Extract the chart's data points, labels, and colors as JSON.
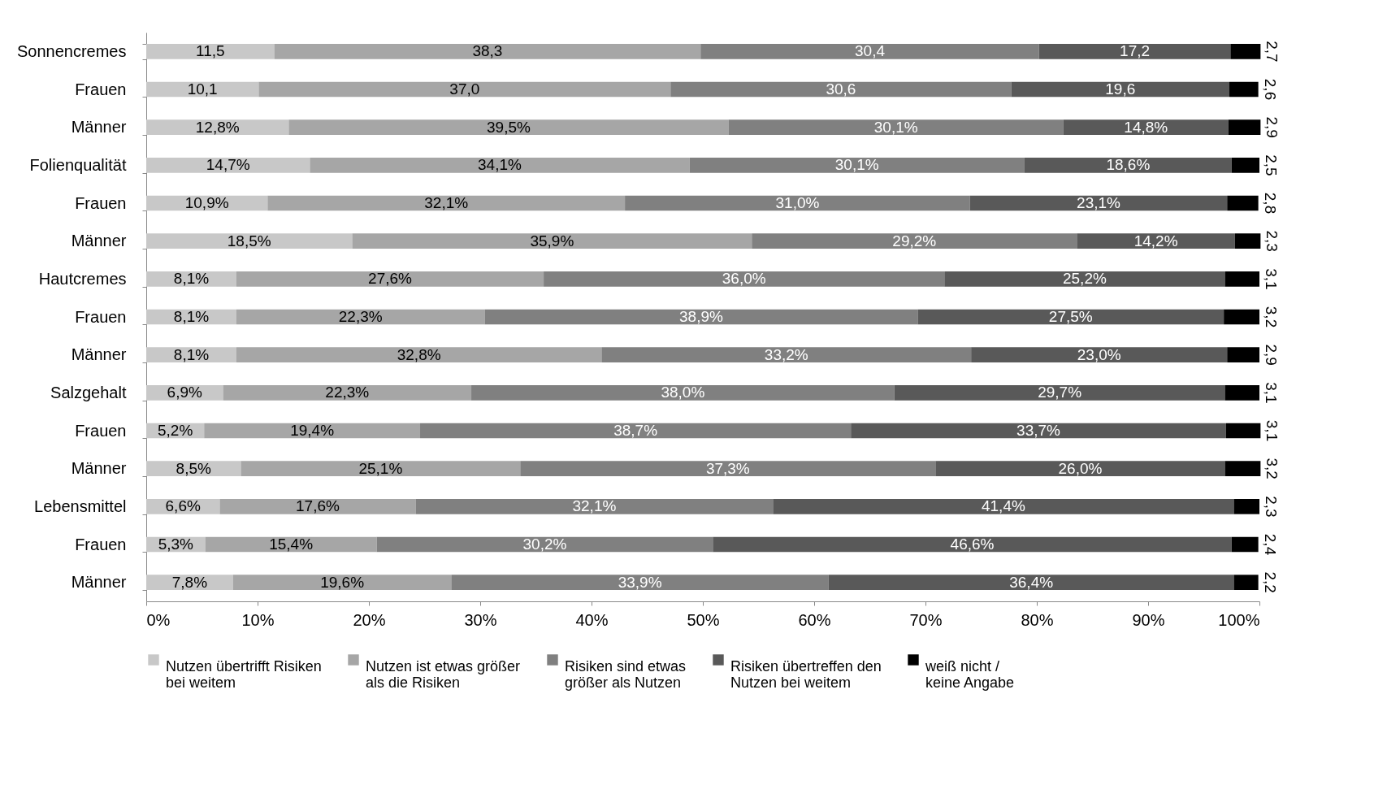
{
  "chart_data": {
    "type": "bar",
    "orientation": "horizontal",
    "stacked": true,
    "categories": [
      "Sonnencremes",
      "Frauen",
      "Männer",
      "Folienqualität",
      "Frauen",
      "Männer",
      "Hautcremes",
      "Frauen",
      "Männer",
      "Salzgehalt",
      "Frauen",
      "Männer",
      "Lebensmittel",
      "Frauen",
      "Männer"
    ],
    "series": [
      {
        "name": "Nutzen übertrifft Risiken bei weitem",
        "color": "#c8c8c8",
        "values": [
          11.5,
          10.1,
          12.8,
          14.7,
          10.9,
          18.5,
          8.1,
          8.1,
          8.1,
          6.9,
          5.2,
          8.5,
          6.6,
          5.3,
          7.8
        ],
        "value_labels": [
          "11,5",
          "10,1",
          "12,8%",
          "14,7%",
          "10,9%",
          "18,5%",
          "8,1%",
          "8,1%",
          "8,1%",
          "6,9%",
          "5,2%",
          "8,5%",
          "6,6%",
          "5,3%",
          "7,8%"
        ]
      },
      {
        "name": "Nutzen ist etwas größer als die Risiken",
        "color": "#a6a6a6",
        "values": [
          38.3,
          37.0,
          39.5,
          34.1,
          32.1,
          35.9,
          27.6,
          22.3,
          32.8,
          22.3,
          19.4,
          25.1,
          17.6,
          15.4,
          19.6
        ],
        "value_labels": [
          "38,3",
          "37,0",
          "39,5%",
          "34,1%",
          "32,1%",
          "35,9%",
          "27,6%",
          "22,3%",
          "32,8%",
          "22,3%",
          "19,4%",
          "25,1%",
          "17,6%",
          "15,4%",
          "19,6%"
        ]
      },
      {
        "name": "Risiken sind etwas größer als Nutzen",
        "color": "#808080",
        "values": [
          30.4,
          30.6,
          30.1,
          30.1,
          31.0,
          29.2,
          36.0,
          38.9,
          33.2,
          38.0,
          38.7,
          37.3,
          32.1,
          30.2,
          33.9
        ],
        "value_labels": [
          "30,4",
          "30,6",
          "30,1%",
          "30,1%",
          "31,0%",
          "29,2%",
          "36,0%",
          "38,9%",
          "33,2%",
          "38,0%",
          "38,7%",
          "37,3%",
          "32,1%",
          "30,2%",
          "33,9%"
        ]
      },
      {
        "name": "Risiken übertreffen den Nutzen bei weitem",
        "color": "#595959",
        "values": [
          17.2,
          19.6,
          14.8,
          18.6,
          23.1,
          14.2,
          25.2,
          27.5,
          23.0,
          29.7,
          33.7,
          26.0,
          41.4,
          46.6,
          36.4
        ],
        "value_labels": [
          "17,2",
          "19,6",
          "14,8%",
          "18,6%",
          "23,1%",
          "14,2%",
          "25,2%",
          "27,5%",
          "23,0%",
          "29,7%",
          "33,7%",
          "26,0%",
          "41,4%",
          "46,6%",
          "36,4%"
        ]
      },
      {
        "name": "weiß nicht / keine Angabe",
        "color": "#000000",
        "values": [
          2.7,
          2.6,
          2.9,
          2.5,
          2.8,
          2.3,
          3.1,
          3.2,
          2.9,
          3.1,
          3.1,
          3.2,
          2.3,
          2.4,
          2.2
        ],
        "value_labels": [
          "2,7",
          "2,6",
          "2,9",
          "2,5",
          "2,8",
          "2,3",
          "3,1",
          "3,2",
          "2,9",
          "3,1",
          "3,1",
          "3,2",
          "2,3",
          "2,4",
          "2,2"
        ]
      }
    ],
    "xlim": [
      0,
      100
    ],
    "xticks": [
      {
        "value": 0,
        "label": "0%"
      },
      {
        "value": 10,
        "label": "10%"
      },
      {
        "value": 20,
        "label": "20%"
      },
      {
        "value": 30,
        "label": "30%"
      },
      {
        "value": 40,
        "label": "40%"
      },
      {
        "value": 50,
        "label": "50%"
      },
      {
        "value": 60,
        "label": "60%"
      },
      {
        "value": 70,
        "label": "70%"
      },
      {
        "value": 80,
        "label": "80%"
      },
      {
        "value": 90,
        "label": "90%"
      },
      {
        "value": 100,
        "label": "100%"
      }
    ],
    "grid": false,
    "legend": "bottom"
  }
}
